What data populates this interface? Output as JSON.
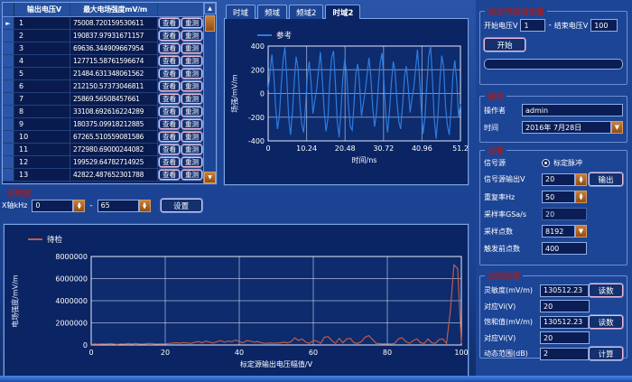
{
  "table": {
    "col_voltage": "输出电压V",
    "col_field": "最大电场强度mV/m",
    "view_label": "查看",
    "retest_label": "重测",
    "marker": "►",
    "rows": [
      {
        "voltage": "1",
        "field": "75008.720159530611"
      },
      {
        "voltage": "2",
        "field": "190837.97931671157"
      },
      {
        "voltage": "3",
        "field": "69636.344909667954"
      },
      {
        "voltage": "4",
        "field": "127715.58761596674"
      },
      {
        "voltage": "5",
        "field": "21484.631348061562"
      },
      {
        "voltage": "6",
        "field": "212150.57373046811"
      },
      {
        "voltage": "7",
        "field": "25869.56508457661"
      },
      {
        "voltage": "8",
        "field": "33108.692616224289"
      },
      {
        "voltage": "9",
        "field": "180375.09918212885"
      },
      {
        "voltage": "10",
        "field": "67265.510559081586"
      },
      {
        "voltage": "11",
        "field": "272980.69000244082"
      },
      {
        "voltage": "12",
        "field": "199529.64782714925"
      },
      {
        "voltage": "13",
        "field": "42822.487652301788"
      }
    ]
  },
  "tabs": {
    "items": [
      {
        "label": "时域"
      },
      {
        "label": "频域"
      },
      {
        "label": "频域2"
      },
      {
        "label": "时域2"
      }
    ],
    "active_index": 3
  },
  "sensitivity": {
    "title": "灵敏度",
    "axis_label": "X轴kHz",
    "from": "0",
    "sep": "-",
    "to": "65",
    "set_label": "设置"
  },
  "right": {
    "calibration": {
      "title": "标准传感器测量",
      "start_label": "开始电压V",
      "start_value": "1",
      "sep": "-",
      "end_label": "结束电压V",
      "end_value": "100",
      "start_button": "开始"
    },
    "operation": {
      "title": "操作",
      "operator_label": "操作者",
      "operator_value": "admin",
      "time_label": "时间",
      "time_value": "2016年 7月28日"
    },
    "settings": {
      "title": "设置",
      "source_label": "信号源",
      "source_option": "标定脉冲",
      "output_label": "信号源输出V",
      "output_value": "20",
      "output_button": "输出",
      "rep_label": "重复率Hz",
      "rep_value": "50",
      "sample_rate_label": "采样率GSa/s",
      "sample_rate_value": "20",
      "points_label": "采样点数",
      "points_value": "8192",
      "pretrigger_label": "触发前点数",
      "pretrigger_value": "400"
    },
    "results": {
      "title": "试验结果",
      "sens_label": "灵敏度(mV/m)",
      "sens_value": "130512.23",
      "read_button": "读数",
      "vi1_label": "对应Vi(V)",
      "vi1_value": "20",
      "sat_label": "饱和值(mV/m)",
      "sat_value": "130512.23",
      "read_button2": "读数",
      "vi2_label": "对应Vi(V)",
      "vi2_value": "20",
      "dyn_label": "动态范围(dB)",
      "dyn_value": "2",
      "calc_button": "计算"
    }
  },
  "chart_data": [
    {
      "id": "time-domain",
      "type": "line",
      "legend": "参考",
      "line_color": "#2d7ce0",
      "xlabel": "时间/ns",
      "ylabel": "场强/mV/m",
      "xlim": [
        0,
        51.2
      ],
      "ylim": [
        -400,
        400
      ],
      "xticks": [
        0,
        10.24,
        20.48,
        30.72,
        40.96,
        51.2
      ],
      "xtick_labels": [
        "0",
        "10.24",
        "20.48",
        "30.72",
        "40.96",
        "51.2"
      ],
      "yticks": [
        400,
        200,
        0,
        -200,
        -400
      ],
      "grid": true,
      "values": [
        30,
        180,
        330,
        160,
        -110,
        -300,
        -190,
        70,
        280,
        390,
        130,
        -200,
        -350,
        -160,
        110,
        310,
        210,
        -90,
        -260,
        -330,
        -110,
        150,
        270,
        90,
        -170,
        -60,
        40,
        200,
        350,
        120,
        -140,
        -320,
        -210,
        90,
        300,
        360,
        100,
        -230,
        -370,
        -140,
        130,
        290,
        180,
        -100,
        -280,
        -310,
        -90,
        170,
        250,
        70,
        -190,
        -80,
        20,
        160,
        300,
        140,
        -120,
        -280,
        -170,
        60,
        260,
        340,
        110,
        -180,
        -330,
        -150,
        90,
        270,
        190,
        -70,
        -240,
        -300,
        -100,
        140,
        230,
        60,
        -160,
        -50,
        50,
        210,
        370,
        150,
        -130,
        -340,
        -200,
        80,
        310,
        400,
        120,
        -220,
        -380,
        -170,
        120,
        320,
        220,
        -110,
        -270,
        -350,
        -120,
        160,
        280,
        100,
        -200,
        -90
      ]
    },
    {
      "id": "calibration-sweep",
      "type": "line",
      "legend": "待检",
      "line_color": "#c25b46",
      "xlabel": "标定源输出电压幅值/V",
      "ylabel": "电场强度/mV/m",
      "xlim": [
        0,
        100
      ],
      "ylim": [
        0,
        8000000
      ],
      "xticks": [
        0,
        20,
        40,
        60,
        80,
        100
      ],
      "xtick_labels": [
        "0",
        "20",
        "40",
        "60",
        "80",
        "100"
      ],
      "yticks": [
        0,
        2000000,
        4000000,
        6000000,
        8000000
      ],
      "grid": true,
      "values": [
        60000,
        90000,
        70000,
        110000,
        80000,
        120000,
        90000,
        60000,
        100000,
        80000,
        130000,
        90000,
        140000,
        100000,
        80000,
        120000,
        150000,
        100000,
        90000,
        110000,
        100000,
        140000,
        180000,
        200000,
        160000,
        220000,
        180000,
        150000,
        250000,
        300000,
        200000,
        350000,
        250000,
        180000,
        300000,
        400000,
        250000,
        350000,
        300000,
        450000,
        300000,
        200000,
        400000,
        350000,
        250000,
        300000,
        200000,
        150000,
        180000,
        160000,
        170000,
        200000,
        250000,
        200000,
        300000,
        650000,
        400000,
        550000,
        250000,
        150000,
        400000,
        350000,
        150000,
        700000,
        750000,
        400000,
        150000,
        600000,
        200000,
        550000,
        600000,
        200000,
        150000,
        300000,
        700000,
        850000,
        500000,
        150000,
        120000,
        100000,
        120000,
        100000,
        150000,
        550000,
        650000,
        300000,
        150000,
        400000,
        550000,
        200000,
        150000,
        550000,
        200000,
        150000,
        500000,
        550000,
        150000,
        3000000,
        7250000,
        6900000,
        150000
      ]
    }
  ]
}
